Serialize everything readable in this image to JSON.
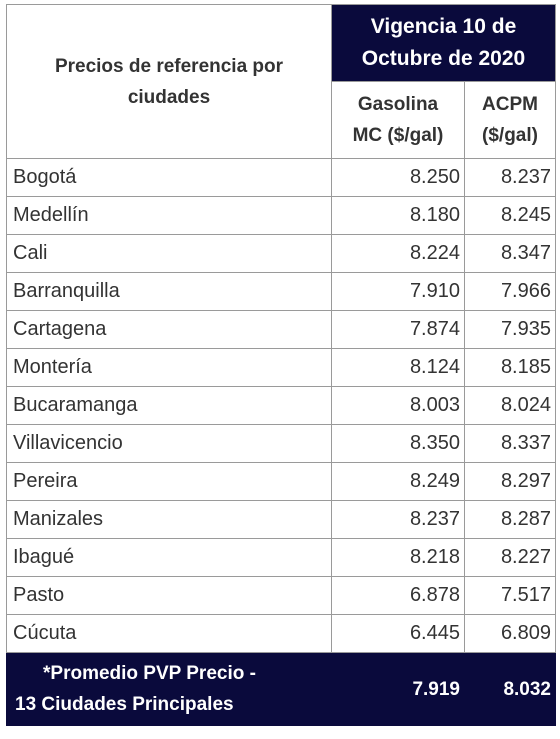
{
  "header": {
    "corner_line1": "Precios de referencia por",
    "corner_line2": "ciudades",
    "vigencia_line1": "Vigencia 10 de",
    "vigencia_line2": "Octubre de 2020",
    "gas_line1": "Gasolina",
    "gas_line2": "MC ($/gal)",
    "acpm_line1": "ACPM",
    "acpm_line2": "($/gal)"
  },
  "rows": [
    {
      "city": "Bogotá",
      "gasolina": "8.250",
      "acpm": "8.237"
    },
    {
      "city": "Medellín",
      "gasolina": "8.180",
      "acpm": "8.245"
    },
    {
      "city": "Cali",
      "gasolina": "8.224",
      "acpm": "8.347"
    },
    {
      "city": "Barranquilla",
      "gasolina": "7.910",
      "acpm": "7.966"
    },
    {
      "city": "Cartagena",
      "gasolina": "7.874",
      "acpm": "7.935"
    },
    {
      "city": "Montería",
      "gasolina": "8.124",
      "acpm": "8.185"
    },
    {
      "city": "Bucaramanga",
      "gasolina": "8.003",
      "acpm": "8.024"
    },
    {
      "city": "Villavicencio",
      "gasolina": "8.350",
      "acpm": "8.337"
    },
    {
      "city": "Pereira",
      "gasolina": "8.249",
      "acpm": "8.297"
    },
    {
      "city": "Manizales",
      "gasolina": "8.237",
      "acpm": "8.287"
    },
    {
      "city": "Ibagué",
      "gasolina": "8.218",
      "acpm": "8.227"
    },
    {
      "city": "Pasto",
      "gasolina": "6.878",
      "acpm": "7.517"
    },
    {
      "city": "Cúcuta",
      "gasolina": "6.445",
      "acpm": "6.809"
    }
  ],
  "footer": {
    "label_line1": "*Promedio PVP Precio -",
    "label_line2": "13 Ciudades Principales",
    "gasolina": "7.919",
    "acpm": "8.032"
  },
  "colors": {
    "header_bg": "#0a0a3c",
    "border": "#9a9a9a",
    "text": "#333333"
  }
}
